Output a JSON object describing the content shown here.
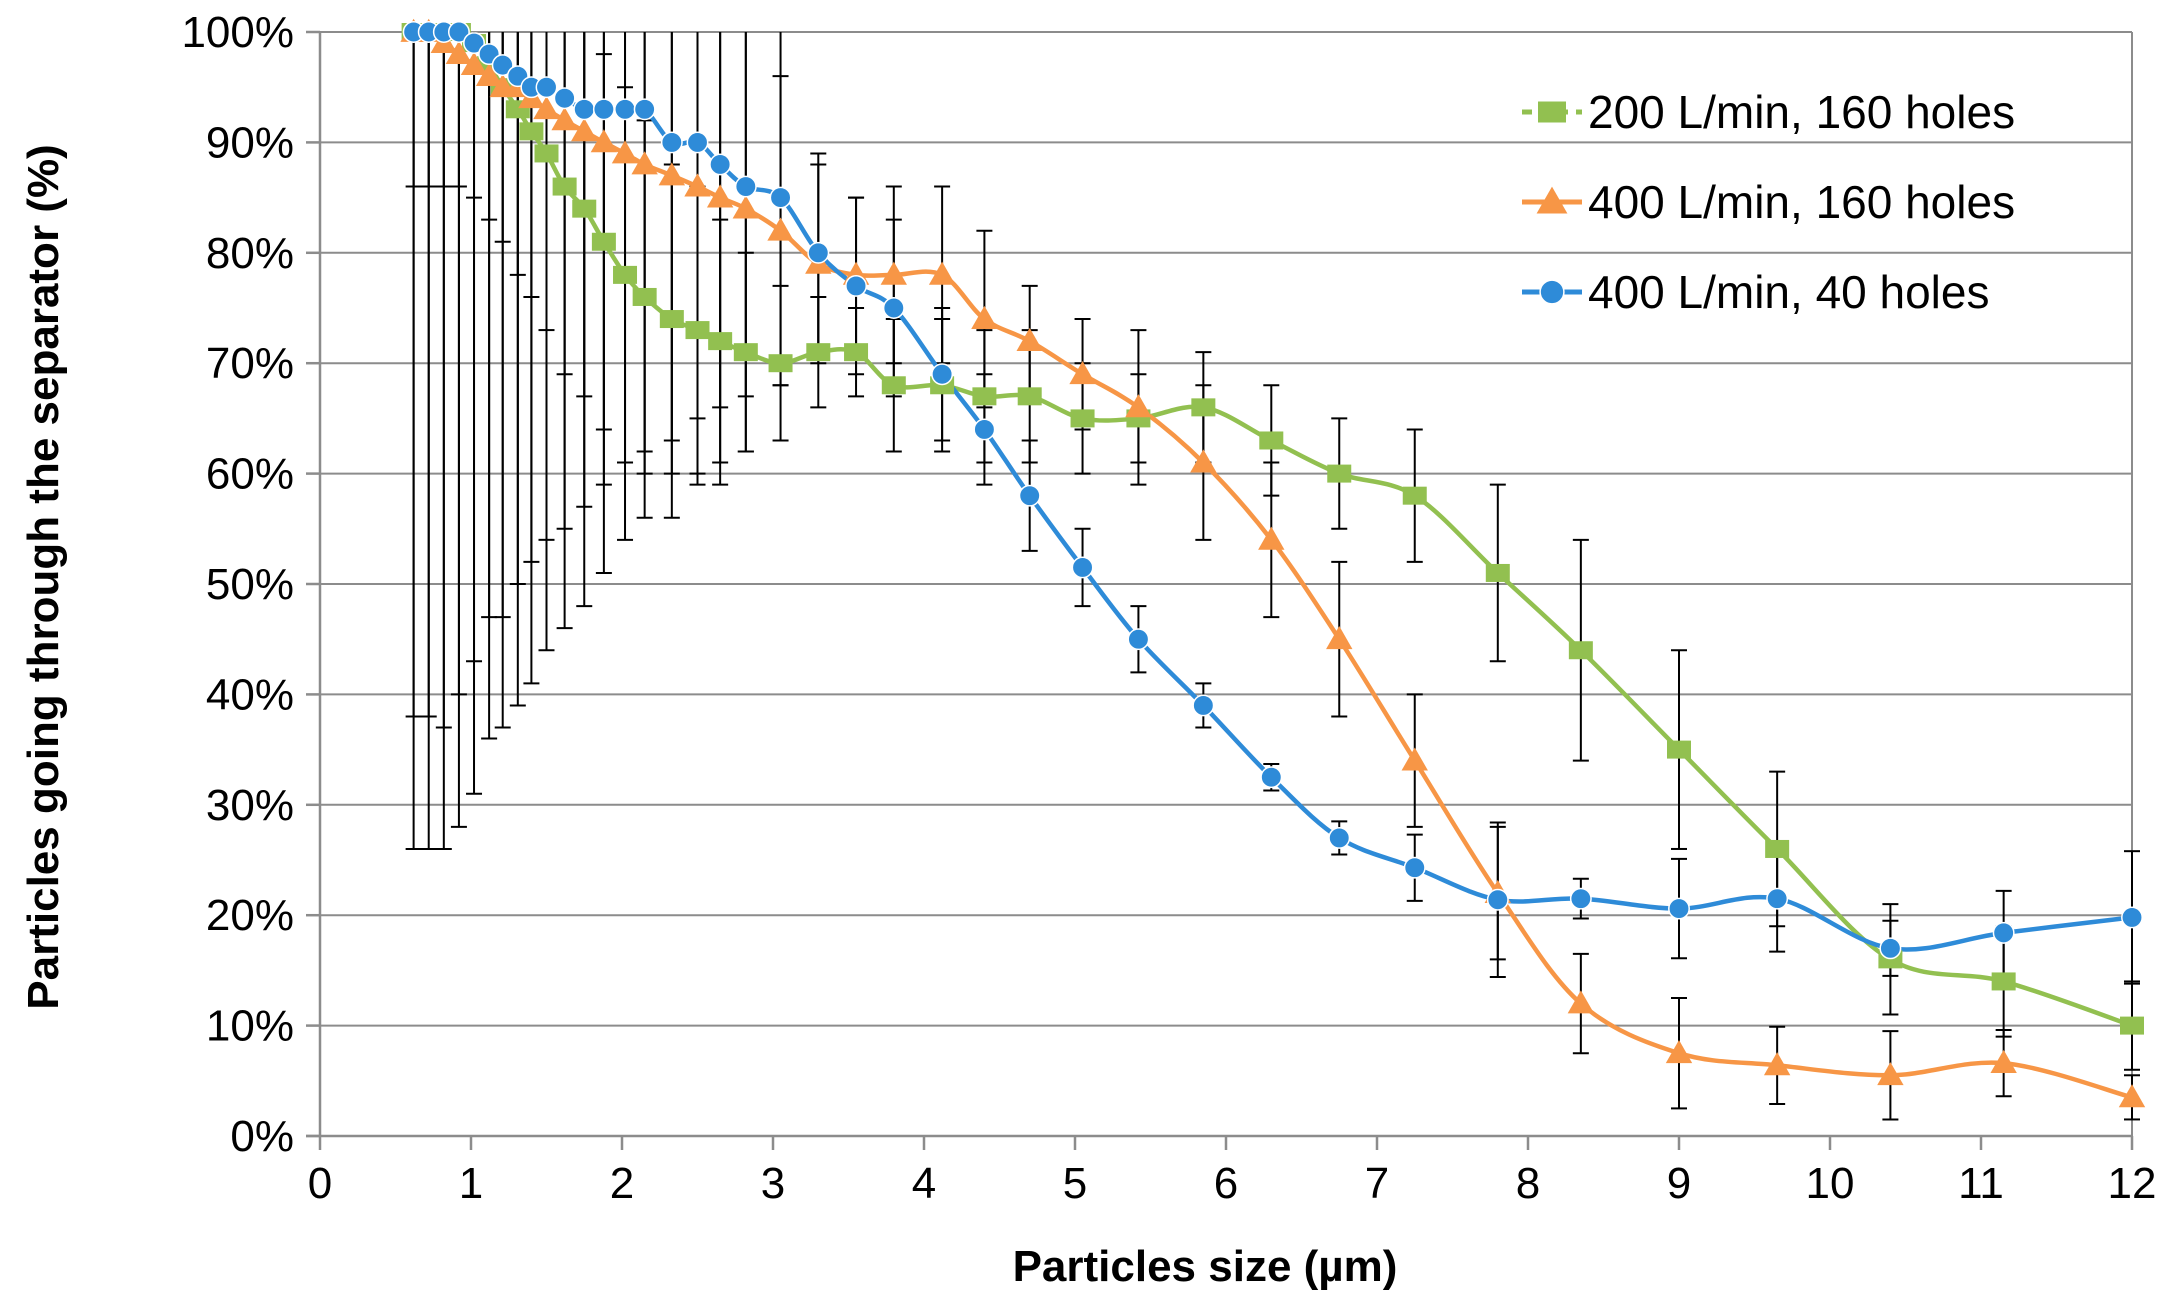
{
  "chart_data": {
    "type": "line",
    "title": "",
    "xlabel": "Particles size (µm)",
    "ylabel": "Particles  going through the separator (%)",
    "xlim": [
      0,
      12
    ],
    "ylim": [
      0,
      100
    ],
    "x_ticks": [
      "0",
      "1",
      "2",
      "3",
      "4",
      "5",
      "6",
      "7",
      "8",
      "9",
      "10",
      "11",
      "12"
    ],
    "y_ticks": [
      "0%",
      "10%",
      "20%",
      "30%",
      "40%",
      "50%",
      "60%",
      "70%",
      "80%",
      "90%",
      "100%"
    ],
    "grid": "horizontal",
    "legend_position": "top-right",
    "series": [
      {
        "name": "200 L/min, 160 holes",
        "color": "#92C050",
        "marker": "square",
        "x": [
          0.62,
          0.72,
          0.82,
          0.92,
          1.02,
          1.12,
          1.21,
          1.31,
          1.4,
          1.5,
          1.62,
          1.75,
          1.88,
          2.02,
          2.15,
          2.33,
          2.5,
          2.65,
          2.82,
          3.05,
          3.3,
          3.55,
          3.8,
          4.12,
          4.4,
          4.7,
          5.05,
          5.42,
          5.85,
          6.3,
          6.75,
          7.25,
          7.8,
          8.35,
          9.0,
          9.65,
          10.4,
          11.15,
          12.0
        ],
        "y": [
          100,
          100,
          100,
          100,
          99,
          97,
          95,
          93,
          91,
          89,
          86,
          84,
          81,
          78,
          76,
          74,
          73,
          72,
          71,
          70,
          71,
          71,
          68,
          68,
          67,
          67,
          65,
          65,
          66,
          63,
          60,
          58,
          51,
          44,
          35,
          26,
          16,
          14,
          10
        ],
        "err": [
          14,
          14,
          14,
          14,
          14,
          14,
          14,
          15,
          15,
          16,
          17,
          17,
          17,
          17,
          16,
          14,
          13,
          11,
          9,
          7,
          5,
          4,
          6,
          6,
          6,
          6,
          5,
          4,
          5,
          5,
          5,
          6,
          8,
          10,
          9,
          7,
          5,
          5,
          4
        ]
      },
      {
        "name": "400 L/min, 160 holes",
        "color": "#F79646",
        "marker": "triangle",
        "x": [
          0.62,
          0.72,
          0.82,
          0.92,
          1.02,
          1.12,
          1.21,
          1.31,
          1.4,
          1.5,
          1.62,
          1.75,
          1.88,
          2.02,
          2.15,
          2.33,
          2.5,
          2.65,
          2.82,
          3.05,
          3.3,
          3.55,
          3.8,
          4.12,
          4.4,
          4.7,
          5.05,
          5.42,
          5.85,
          6.3,
          6.75,
          7.25,
          7.8,
          8.35,
          9.0,
          9.65,
          10.4,
          11.15,
          12.0
        ],
        "y": [
          100,
          100,
          99,
          98,
          97,
          96,
          95,
          95,
          94,
          93,
          92,
          91,
          90,
          89,
          88,
          87,
          86,
          85,
          84,
          82,
          79,
          78,
          78,
          78,
          74,
          72,
          69,
          66,
          61,
          54,
          45,
          34,
          22,
          12,
          7.5,
          6.4,
          5.5,
          6.6,
          3.5
        ],
        "err": [
          62,
          62,
          62,
          58,
          54,
          49,
          48,
          45,
          42,
          39,
          37,
          34,
          31,
          28,
          26,
          24,
          21,
          19,
          17,
          14,
          9,
          7,
          8,
          8,
          8,
          5,
          5,
          7,
          7,
          7,
          7,
          6,
          6,
          4.5,
          5,
          3.5,
          4,
          3,
          2
        ]
      },
      {
        "name": "400 L/min, 40 holes",
        "color": "#2E8BD8",
        "marker": "circle",
        "x": [
          0.62,
          0.72,
          0.82,
          0.92,
          1.02,
          1.12,
          1.21,
          1.31,
          1.4,
          1.5,
          1.62,
          1.75,
          1.88,
          2.02,
          2.15,
          2.33,
          2.5,
          2.65,
          2.82,
          3.05,
          3.3,
          3.55,
          3.8,
          4.12,
          4.4,
          4.7,
          5.05,
          5.42,
          5.85,
          6.3,
          6.75,
          7.25,
          7.8,
          8.35,
          9.0,
          9.65,
          10.4,
          11.15,
          12.0
        ],
        "y": [
          100,
          100,
          100,
          100,
          99,
          98,
          97,
          96,
          95,
          95,
          94,
          93,
          93,
          93,
          93,
          90,
          90,
          88,
          86,
          85,
          80,
          77,
          75,
          69,
          64,
          58,
          51.5,
          45,
          39,
          32.5,
          27,
          24.3,
          21.4,
          21.5,
          20.6,
          21.5,
          17,
          18.4,
          19.8
        ],
        "err": [
          74,
          74,
          74,
          72,
          68,
          62,
          60,
          57,
          54,
          51,
          48,
          45,
          42,
          39,
          37,
          34,
          31,
          29,
          24,
          17,
          9,
          8,
          8,
          6,
          5,
          5,
          3.5,
          3,
          2,
          1.2,
          1.5,
          3,
          7,
          1.8,
          4.5,
          4.8,
          2.5,
          3.8,
          6
        ]
      }
    ]
  }
}
